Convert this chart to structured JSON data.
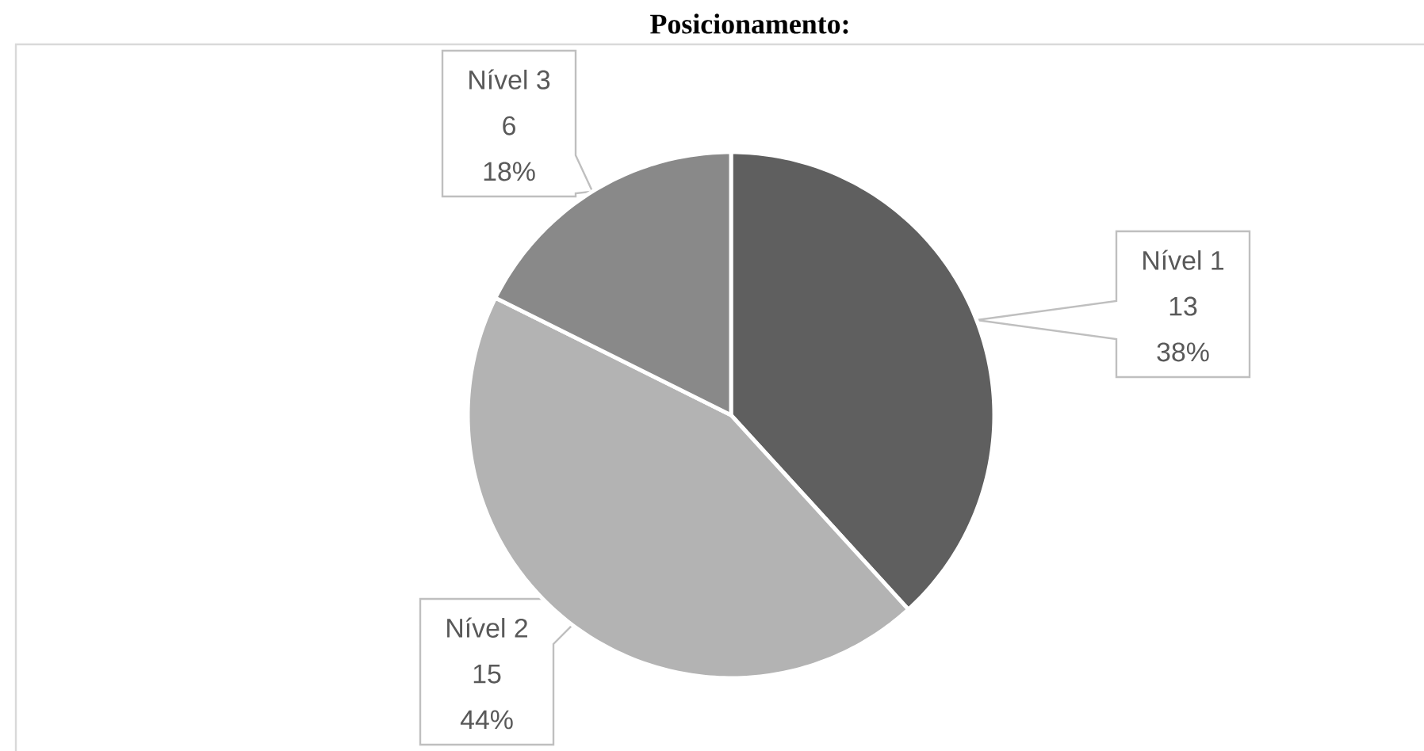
{
  "chart_data": {
    "type": "pie",
    "title": "Posicionamento:",
    "categories": [
      "Nível 1",
      "Nível 2",
      "Nível 3"
    ],
    "values": [
      13,
      15,
      6
    ],
    "colors": [
      "#5f5f5f",
      "#b3b3b3",
      "#898989"
    ],
    "data_labels": true,
    "annotations": [
      "38%",
      "44%",
      "18%"
    ]
  }
}
